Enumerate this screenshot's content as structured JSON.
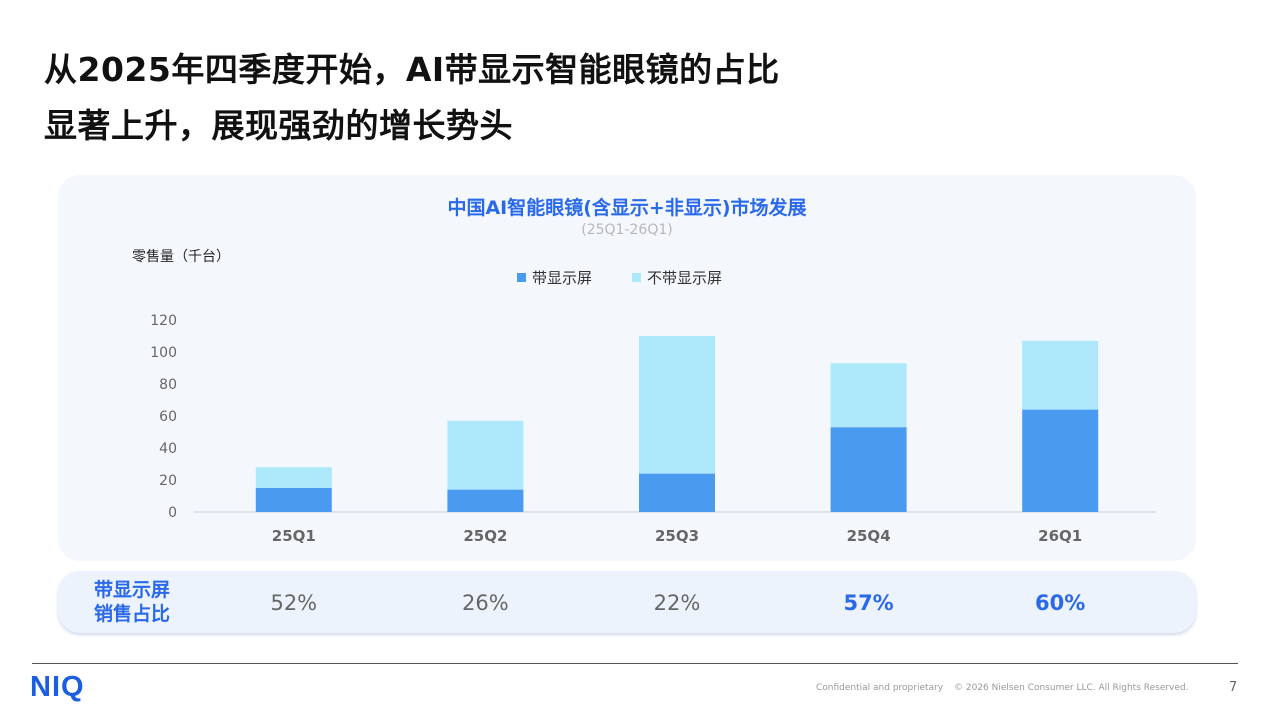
{
  "headline": {
    "line1": "从2025年四季度开始，AI带显示智能眼镜的占比",
    "line2": "显著上升，展现强劲的增长势头"
  },
  "chart_data": {
    "type": "bar",
    "stacked": true,
    "title": "中国AI智能眼镜(含显示+非显示)市场发展",
    "subtitle": "(25Q1-26Q1)",
    "ylabel": "零售量（千台）",
    "xlabel": "",
    "categories": [
      "25Q1",
      "25Q2",
      "25Q3",
      "25Q4",
      "26Q1"
    ],
    "series": [
      {
        "name": "带显示屏",
        "color": "#4a9af0",
        "values": [
          15,
          14,
          24,
          53,
          64
        ]
      },
      {
        "name": "不带显示屏",
        "color": "#aee9fb",
        "values": [
          13,
          43,
          86,
          40,
          43
        ]
      }
    ],
    "ylim": [
      0,
      120
    ],
    "yticks": [
      0,
      20,
      40,
      60,
      80,
      100,
      120
    ],
    "grid": false,
    "legend": "top-center"
  },
  "share": {
    "label_line1": "带显示屏",
    "label_line2": "销售占比",
    "values": [
      {
        "text": "52%",
        "highlight": false
      },
      {
        "text": "26%",
        "highlight": false
      },
      {
        "text": "22%",
        "highlight": false
      },
      {
        "text": "57%",
        "highlight": true
      },
      {
        "text": "60%",
        "highlight": true
      }
    ]
  },
  "footer": {
    "logo": "NIQ",
    "confidential": "Confidential and proprietary",
    "copyright": "© 2026 Nielsen Consumer LLC. All Rights Reserved.",
    "page": "7"
  }
}
